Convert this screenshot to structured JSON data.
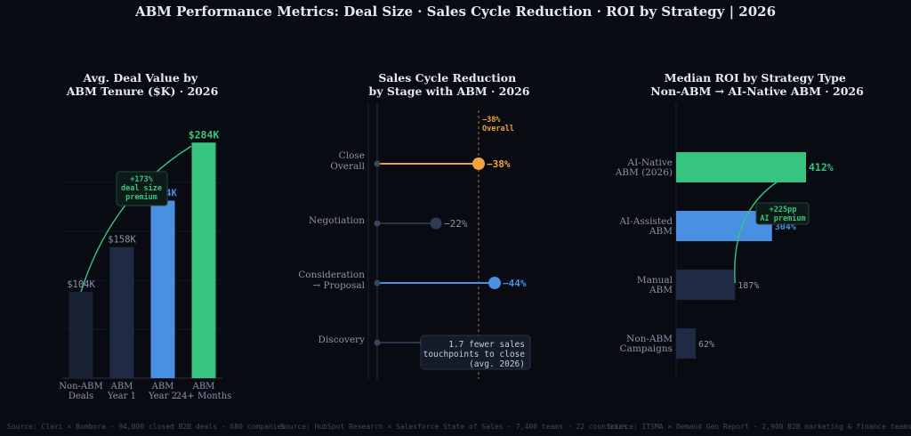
{
  "title": "ABM Performance Metrics: Deal Size · Sales Cycle Reduction · ROI by Strategy  |  2026",
  "colors": {
    "background": "#080b11",
    "dark_bar": "#1a2335",
    "mid_bar": "#1f2b45",
    "blue": "#4a90e2",
    "green": "#36c47f",
    "orange": "#f2a33a",
    "muted_text": "#8a93ab",
    "source_text": "#3c4a63"
  },
  "chart_data": [
    {
      "type": "bar",
      "title_lines": [
        "Avg. Deal Value by",
        "ABM Tenure ($K) · 2026"
      ],
      "categories": [
        [
          "Non-ABM",
          "Deals"
        ],
        [
          "ABM",
          "Year 1"
        ],
        [
          "ABM",
          "Year 2"
        ],
        [
          "ABM",
          "24+ Months"
        ]
      ],
      "values": [
        104,
        158,
        214,
        284
      ],
      "value_labels": [
        "$104K",
        "$158K",
        "$214K",
        "$284K"
      ],
      "ylim": [
        0,
        295
      ],
      "annotation": [
        "+173%",
        "deal size",
        "premium"
      ],
      "source": "Source: Clari × Bombora · 94,000 closed B2B deals · 680 companies"
    },
    {
      "type": "lollipop",
      "title_lines": [
        "Sales Cycle Reduction",
        "by Stage with ABM · 2026"
      ],
      "categories": [
        [
          "Close",
          "Overall"
        ],
        [
          "Negotiation"
        ],
        [
          "Consideration",
          "→ Proposal"
        ],
        [
          "Discovery"
        ]
      ],
      "values": [
        -38,
        -22,
        -44,
        -18
      ],
      "value_labels": [
        "−38%",
        "−22%",
        "−44%",
        ""
      ],
      "xlim": [
        0,
        -50
      ],
      "reference_value": -38,
      "reference_label": [
        "−38%",
        "Overall"
      ],
      "annotation": [
        "1.7 fewer sales",
        "touchpoints to close",
        "(avg. 2026)"
      ],
      "source": "Source: HubSpot Research × Salesforce State of Sales · 7,400 teams · 22 countries"
    },
    {
      "type": "bar",
      "orientation": "horizontal",
      "title_lines": [
        "Median ROI by Strategy Type",
        "Non-ABM → AI-Native ABM · 2026"
      ],
      "categories": [
        [
          "AI-Native",
          "ABM (2026)"
        ],
        [
          "AI-Assisted",
          "ABM"
        ],
        [
          "Manual",
          "ABM"
        ],
        [
          "Non-ABM",
          "Campaigns"
        ]
      ],
      "values": [
        412,
        304,
        187,
        62
      ],
      "value_labels": [
        "412%",
        "304%",
        "187%",
        "62%"
      ],
      "xlim": [
        0,
        420
      ],
      "annotation": [
        "+225pp",
        "AI premium"
      ],
      "source": "Source: ITSMA × Demand Gen Report · 2,900 B2B marketing & finance teams"
    }
  ]
}
